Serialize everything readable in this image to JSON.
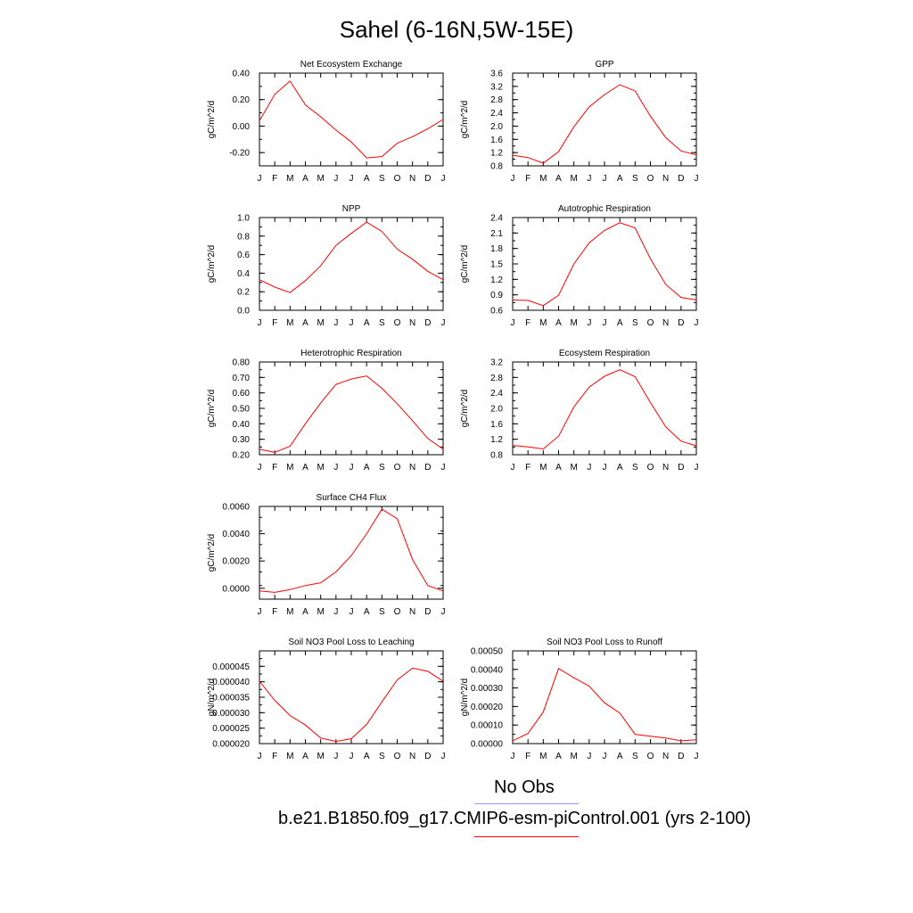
{
  "page": {
    "title": "Sahel (6-16N,5W-15E)"
  },
  "months": [
    "J",
    "F",
    "M",
    "A",
    "M",
    "J",
    "J",
    "A",
    "S",
    "O",
    "N",
    "D",
    "J"
  ],
  "colors": {
    "series": "#ff0000",
    "obs": "#9999ff",
    "axis": "#000000"
  },
  "legend": {
    "obs_label": "No Obs",
    "model_label": "b.e21.B1850.f09_g17.CMIP6-esm-piControl.001 (yrs 2-100)"
  },
  "chart_data": [
    {
      "type": "line",
      "title": "Net Ecosystem Exchange",
      "ylabel": "gC/m^2/d",
      "ylim": [
        -0.3,
        0.4
      ],
      "yticks": [
        "0.40",
        "0.20",
        "0.00",
        "-0.20"
      ],
      "ytick_values": [
        0.4,
        0.2,
        0.0,
        -0.2
      ],
      "minor_step": 0.1,
      "values": [
        0.04,
        0.24,
        0.34,
        0.16,
        0.07,
        -0.03,
        -0.12,
        -0.24,
        -0.23,
        -0.13,
        -0.08,
        -0.02,
        0.05
      ]
    },
    {
      "type": "line",
      "title": "GPP",
      "ylabel": "gC/m^2/d",
      "ylim": [
        0.8,
        3.6
      ],
      "yticks": [
        "3.6",
        "3.2",
        "2.8",
        "2.4",
        "2.0",
        "1.6",
        "1.2",
        "0.8"
      ],
      "ytick_values": [
        3.6,
        3.2,
        2.8,
        2.4,
        2.0,
        1.6,
        1.2,
        0.8
      ],
      "minor_step": 0.2,
      "values": [
        1.12,
        1.05,
        0.88,
        1.23,
        1.98,
        2.58,
        2.95,
        3.25,
        3.06,
        2.3,
        1.65,
        1.25,
        1.13
      ]
    },
    {
      "type": "line",
      "title": "NPP",
      "ylabel": "gC/m^2/d",
      "ylim": [
        0.0,
        1.0
      ],
      "yticks": [
        "1.0",
        "0.8",
        "0.6",
        "0.4",
        "0.2",
        "0.0"
      ],
      "ytick_values": [
        1.0,
        0.8,
        0.6,
        0.4,
        0.2,
        0.0
      ],
      "minor_step": 0.1,
      "values": [
        0.33,
        0.25,
        0.19,
        0.32,
        0.48,
        0.7,
        0.83,
        0.95,
        0.85,
        0.66,
        0.55,
        0.42,
        0.33
      ]
    },
    {
      "type": "line",
      "title": "Autotrophic Respiration",
      "ylabel": "gC/m^2/d",
      "ylim": [
        0.6,
        2.4
      ],
      "yticks": [
        "2.4",
        "2.1",
        "1.8",
        "1.5",
        "1.2",
        "0.9",
        "0.6"
      ],
      "ytick_values": [
        2.4,
        2.1,
        1.8,
        1.5,
        1.2,
        0.9,
        0.6
      ],
      "minor_step": 0.15,
      "values": [
        0.8,
        0.79,
        0.69,
        0.89,
        1.5,
        1.91,
        2.15,
        2.3,
        2.2,
        1.6,
        1.1,
        0.85,
        0.8
      ]
    },
    {
      "type": "line",
      "title": "Heterotrophic Respiration",
      "ylabel": "gC/m^2/d",
      "ylim": [
        0.2,
        0.8
      ],
      "yticks": [
        "0.80",
        "0.70",
        "0.60",
        "0.50",
        "0.40",
        "0.30",
        "0.20"
      ],
      "ytick_values": [
        0.8,
        0.7,
        0.6,
        0.5,
        0.4,
        0.3,
        0.2
      ],
      "minor_step": 0.05,
      "values": [
        0.235,
        0.215,
        0.255,
        0.4,
        0.535,
        0.655,
        0.69,
        0.71,
        0.63,
        0.53,
        0.42,
        0.305,
        0.235
      ]
    },
    {
      "type": "line",
      "title": "Ecosystem Respiration",
      "ylabel": "gC/m^2/d",
      "ylim": [
        0.8,
        3.2
      ],
      "yticks": [
        "3.2",
        "2.8",
        "2.4",
        "2.0",
        "1.6",
        "1.2",
        "0.8"
      ],
      "ytick_values": [
        3.2,
        2.8,
        2.4,
        2.0,
        1.6,
        1.2,
        0.8
      ],
      "minor_step": 0.2,
      "values": [
        1.04,
        1.0,
        0.95,
        1.28,
        2.04,
        2.55,
        2.83,
        3.0,
        2.82,
        2.15,
        1.52,
        1.15,
        1.03
      ]
    },
    {
      "type": "line",
      "title": "Surface CH4 Flux",
      "ylabel": "gC/m^2/d",
      "ylim": [
        -0.0008,
        0.006
      ],
      "yticks": [
        "0.0060",
        "0.0040",
        "0.0020",
        "0.0000"
      ],
      "ytick_values": [
        0.006,
        0.004,
        0.002,
        0.0
      ],
      "minor_step": 0.001,
      "values": [
        -0.0002,
        -0.0003,
        -0.0001,
        0.0002,
        0.0004,
        0.0012,
        0.0024,
        0.004,
        0.0058,
        0.0051,
        0.0021,
        0.0002,
        -0.0002
      ]
    },
    {
      "type": "line",
      "title": "Soil NO3 Pool Loss to Leaching",
      "ylabel": "gN/m^2/d",
      "ylim": [
        2e-05,
        5e-05
      ],
      "yticks": [
        "0.000045",
        "0.000040",
        "0.000035",
        "0.000030",
        "0.000025",
        "0.000020"
      ],
      "ytick_values": [
        4.5e-05,
        4e-05,
        3.5e-05,
        3e-05,
        2.5e-05,
        2e-05
      ],
      "minor_step": 2.5e-06,
      "values": [
        4.02e-05,
        3.4e-05,
        2.91e-05,
        2.6e-05,
        2.18e-05,
        2.07e-05,
        2.16e-05,
        2.62e-05,
        3.35e-05,
        4.06e-05,
        4.44e-05,
        4.34e-05,
        4.02e-05
      ]
    },
    {
      "type": "line",
      "title": "Soil NO3 Pool Loss to Runoff",
      "ylabel": "gN/m^2/d",
      "ylim": [
        0.0,
        0.0005
      ],
      "yticks": [
        "0.00050",
        "0.00040",
        "0.00030",
        "0.00020",
        "0.00010",
        "0.00000"
      ],
      "ytick_values": [
        0.0005,
        0.0004,
        0.0003,
        0.0002,
        0.0001,
        0.0
      ],
      "minor_step": 5e-05,
      "values": [
        1.5e-05,
        5.5e-05,
        0.00017,
        0.000405,
        0.000355,
        0.00031,
        0.00022,
        0.000165,
        5e-05,
        4e-05,
        3e-05,
        1.5e-05,
        2e-05
      ]
    }
  ]
}
